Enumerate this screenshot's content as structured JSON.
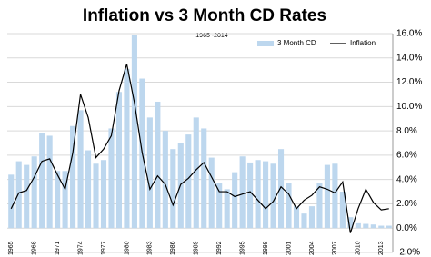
{
  "chart_data": {
    "type": "bar_line",
    "title": "Inflation vs 3 Month CD Rates",
    "subtitle": "1965 -2014",
    "categories": [
      "1965",
      null,
      null,
      "1968",
      null,
      null,
      "1971",
      null,
      null,
      "1974",
      null,
      null,
      "1977",
      null,
      null,
      "1980",
      null,
      null,
      "1983",
      null,
      null,
      "1986",
      null,
      null,
      "1989",
      null,
      null,
      "1992",
      null,
      null,
      "1995",
      null,
      null,
      "1998",
      null,
      null,
      "2001",
      null,
      null,
      "2004",
      null,
      null,
      "2007",
      null,
      null,
      "2010",
      null,
      null,
      "2013",
      null
    ],
    "series": [
      {
        "name": "3 Month CD",
        "type": "bar",
        "color": "#bdd7ee",
        "values": [
          4.4,
          5.5,
          5.2,
          5.9,
          7.8,
          7.6,
          4.7,
          4.7,
          8.4,
          9.7,
          6.4,
          5.3,
          5.6,
          8.2,
          11.2,
          13.1,
          15.9,
          12.3,
          9.1,
          10.4,
          8.0,
          6.5,
          7.0,
          7.7,
          9.1,
          8.2,
          5.8,
          3.7,
          3.2,
          4.6,
          5.9,
          5.4,
          5.6,
          5.5,
          5.3,
          6.5,
          3.7,
          1.8,
          1.2,
          1.8,
          3.7,
          5.2,
          5.3,
          3.0,
          0.9,
          0.4,
          0.35,
          0.3,
          0.2,
          0.2
        ]
      },
      {
        "name": "Inflation",
        "type": "line",
        "color": "#000000",
        "values": [
          1.6,
          2.9,
          3.1,
          4.2,
          5.5,
          5.7,
          4.4,
          3.2,
          6.2,
          11.0,
          9.1,
          5.8,
          6.5,
          7.6,
          11.3,
          13.5,
          10.3,
          6.2,
          3.2,
          4.3,
          3.6,
          1.9,
          3.6,
          4.1,
          4.8,
          5.4,
          4.2,
          3.0,
          3.0,
          2.6,
          2.8,
          3.0,
          2.3,
          1.6,
          2.2,
          3.4,
          2.8,
          1.6,
          2.3,
          2.7,
          3.4,
          3.2,
          2.9,
          3.8,
          -0.4,
          1.6,
          3.2,
          2.1,
          1.5,
          1.6
        ]
      }
    ],
    "ylim": [
      -2,
      16
    ],
    "yticks": [
      {
        "value": -2,
        "label": "-2.0%"
      },
      {
        "value": 0,
        "label": "0.0%"
      },
      {
        "value": 2,
        "label": "2.0%"
      },
      {
        "value": 4,
        "label": "4.0%"
      },
      {
        "value": 6,
        "label": "6.0%"
      },
      {
        "value": 8,
        "label": "8.0%"
      },
      {
        "value": 10,
        "label": "10.0%"
      },
      {
        "value": 12,
        "label": "12.0%"
      },
      {
        "value": 14,
        "label": "14.0%"
      },
      {
        "value": 16,
        "label": "16.0%"
      }
    ],
    "grid": true,
    "legend": "top-right"
  }
}
